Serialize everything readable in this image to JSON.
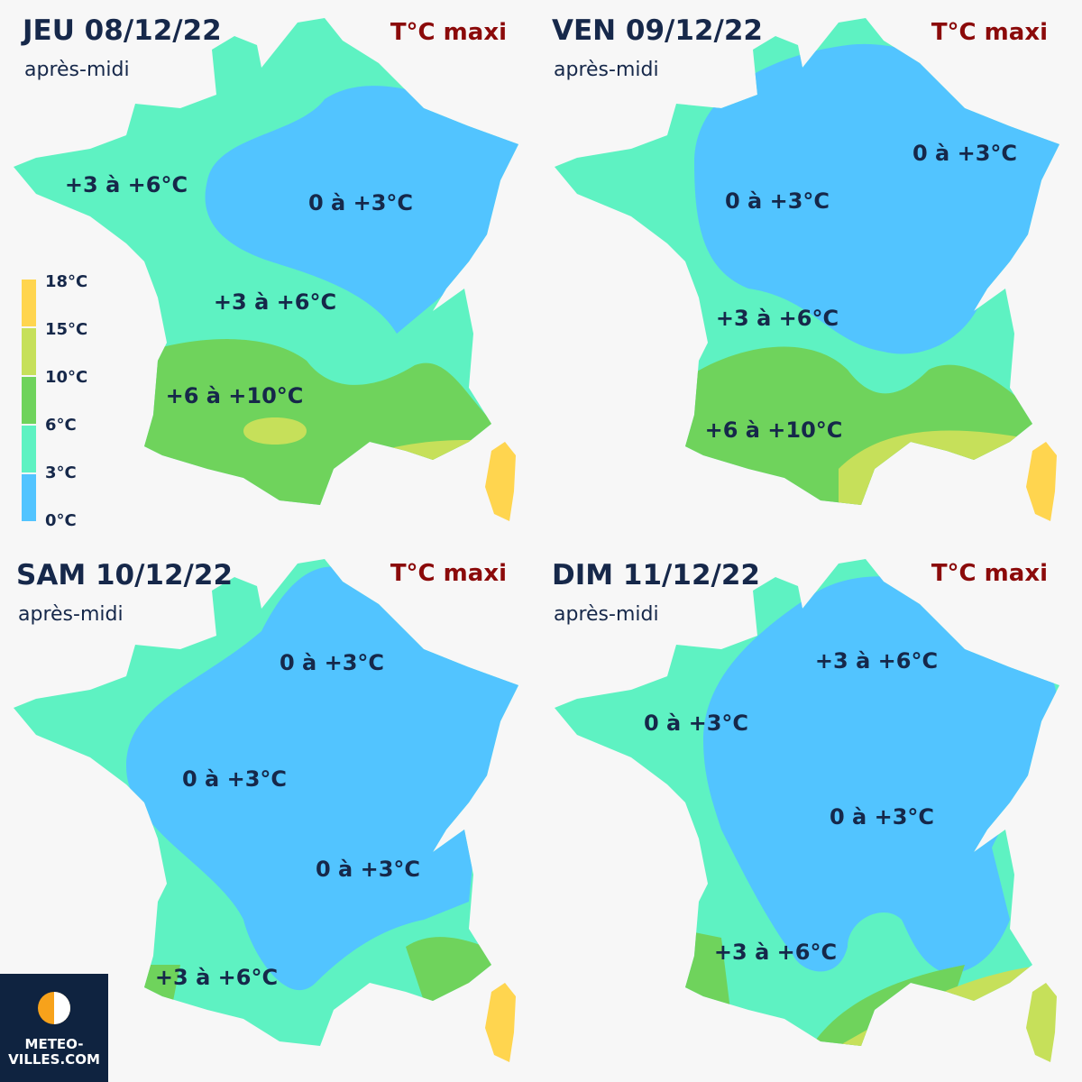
{
  "panels": [
    {
      "title": "JEU 08/12/22",
      "subtitle": "après-midi",
      "tag": "T°C maxi",
      "labels": [
        "+3 à +6°C",
        "0 à +3°C",
        "+3 à +6°C",
        "+6 à +10°C"
      ]
    },
    {
      "title": "VEN 09/12/22",
      "subtitle": "après-midi",
      "tag": "T°C maxi",
      "labels": [
        "0 à +3°C",
        "0 à +3°C",
        "+3 à +6°C",
        "+6 à +10°C"
      ]
    },
    {
      "title": "SAM 10/12/22",
      "subtitle": "après-midi",
      "tag": "T°C maxi",
      "labels": [
        "0 à +3°C",
        "0 à +3°C",
        "0 à +3°C",
        "+3 à +6°C"
      ]
    },
    {
      "title": "DIM 11/12/22",
      "subtitle": "après-midi",
      "tag": "T°C maxi",
      "labels": [
        "0 à +3°C",
        "+3 à +6°C",
        "0 à +3°C",
        "+3 à +6°C"
      ]
    }
  ],
  "legend": {
    "labels": [
      "18°C",
      "15°C",
      "10°C",
      "6°C",
      "3°C",
      "0°C"
    ]
  },
  "logo": {
    "line1": "METEO-",
    "line2": "VILLES.COM"
  }
}
